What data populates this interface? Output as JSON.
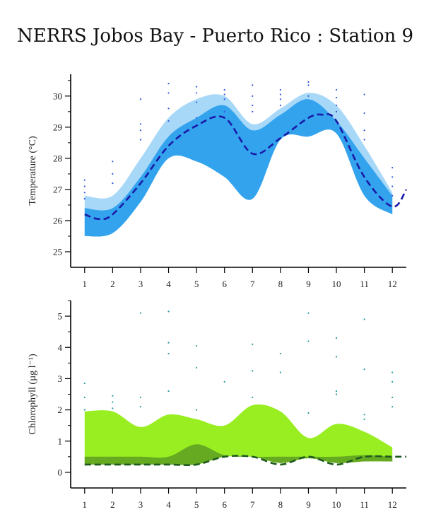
{
  "title": "NERRS Jobos Bay - Puerto Rico : Station 9",
  "colors": {
    "temp_outer": "#a8d8f8",
    "temp_inner": "#33a3ee",
    "temp_line": "#1a1aa8",
    "temp_dots": "#3355dd",
    "chl_outer": "#99ee22",
    "chl_inner": "#66aa22",
    "chl_line": "#1e5a1e",
    "chl_dots": "#229999",
    "axis": "#000000"
  },
  "chart_data": [
    {
      "type": "area",
      "ylabel": "Temperature (°C)",
      "xlabel": "",
      "x_ticks": [
        "1",
        "2",
        "3",
        "4",
        "5",
        "6",
        "7",
        "8",
        "9",
        "10",
        "11",
        "12"
      ],
      "y_ticks": [
        "25",
        "26",
        "27",
        "28",
        "29",
        "30"
      ],
      "xlim": [
        0.5,
        12.5
      ],
      "ylim": [
        24.5,
        30.7
      ],
      "outer_upper": [
        26.8,
        26.8,
        28.0,
        29.3,
        29.9,
        30.0,
        29.1,
        29.6,
        30.1,
        29.7,
        28.4,
        26.9
      ],
      "outer_lower": [
        25.5,
        25.6,
        26.6,
        28.0,
        27.9,
        27.4,
        26.7,
        28.6,
        28.7,
        28.8,
        26.8,
        26.2
      ],
      "inner_upper": [
        26.4,
        26.4,
        27.4,
        28.7,
        29.3,
        29.7,
        28.9,
        29.4,
        29.9,
        29.2,
        28.0,
        26.8
      ],
      "inner_lower": [
        25.5,
        25.6,
        26.6,
        28.0,
        27.9,
        27.4,
        26.7,
        28.6,
        28.7,
        28.8,
        26.8,
        26.2
      ],
      "median_x": [
        1,
        1.5,
        2,
        3,
        4,
        5,
        6,
        7,
        8,
        9,
        9.5,
        10,
        11,
        12,
        12.5
      ],
      "median": [
        26.2,
        26.05,
        26.2,
        27.2,
        28.4,
        29.05,
        29.3,
        28.15,
        28.65,
        29.3,
        29.4,
        29.2,
        27.4,
        26.45,
        27.0
      ],
      "points": [
        [
          1,
          27.3
        ],
        [
          1,
          27.1
        ],
        [
          1,
          26.9
        ],
        [
          1,
          26.7
        ],
        [
          2,
          27.9
        ],
        [
          2,
          27.5
        ],
        [
          2,
          27.2
        ],
        [
          3,
          29.9
        ],
        [
          3,
          29.1
        ],
        [
          3,
          28.9
        ],
        [
          3,
          28.6
        ],
        [
          4,
          30.4
        ],
        [
          4,
          30.1
        ],
        [
          4,
          29.6
        ],
        [
          4,
          29.2
        ],
        [
          5,
          30.3
        ],
        [
          5,
          30.1
        ],
        [
          5,
          29.8
        ],
        [
          5,
          29.3
        ],
        [
          6,
          30.2
        ],
        [
          6,
          30.05
        ],
        [
          6,
          29.9
        ],
        [
          6,
          29.5
        ],
        [
          7,
          30.35
        ],
        [
          7,
          30.0
        ],
        [
          7,
          29.7
        ],
        [
          7,
          29.5
        ],
        [
          8,
          30.2
        ],
        [
          8,
          30.05
        ],
        [
          8,
          29.9
        ],
        [
          8,
          29.7
        ],
        [
          9,
          30.45
        ],
        [
          9,
          30.35
        ],
        [
          9,
          30.0
        ],
        [
          10,
          30.2
        ],
        [
          10,
          29.95
        ],
        [
          10,
          29.7
        ],
        [
          10,
          29.5
        ],
        [
          11,
          30.05
        ],
        [
          11,
          29.45
        ],
        [
          11,
          28.9
        ],
        [
          11,
          28.6
        ],
        [
          12,
          27.7
        ],
        [
          12,
          27.4
        ],
        [
          12,
          27.1
        ],
        [
          12,
          26.8
        ]
      ]
    },
    {
      "type": "area",
      "ylabel": "Chlorophyll (µg l⁻¹)",
      "xlabel": "",
      "x_ticks": [
        "1",
        "2",
        "3",
        "4",
        "5",
        "6",
        "7",
        "8",
        "9",
        "10",
        "11",
        "12"
      ],
      "y_ticks": [
        "0",
        "1",
        "2",
        "3",
        "4",
        "5"
      ],
      "xlim": [
        0.5,
        12.5
      ],
      "ylim": [
        -0.5,
        5.5
      ],
      "outer_upper": [
        1.95,
        1.95,
        1.45,
        1.85,
        1.7,
        1.5,
        2.15,
        1.95,
        1.1,
        1.55,
        1.3,
        0.8
      ],
      "outer_lower": [
        0.3,
        0.3,
        0.3,
        0.3,
        0.35,
        0.5,
        0.5,
        0.3,
        0.45,
        0.3,
        0.35,
        0.35
      ],
      "inner_upper": [
        0.5,
        0.5,
        0.5,
        0.5,
        0.9,
        0.55,
        0.5,
        0.5,
        0.5,
        0.5,
        0.55,
        0.5
      ],
      "inner_lower": [
        0.25,
        0.25,
        0.25,
        0.25,
        0.25,
        0.5,
        0.5,
        0.3,
        0.45,
        0.3,
        0.35,
        0.35
      ],
      "median_x": [
        1,
        2,
        3,
        4,
        5,
        6,
        7,
        8,
        9,
        10,
        11,
        12,
        12.5
      ],
      "median": [
        0.25,
        0.25,
        0.25,
        0.25,
        0.25,
        0.5,
        0.5,
        0.25,
        0.5,
        0.25,
        0.5,
        0.5,
        0.5
      ],
      "points": [
        [
          1,
          2.85
        ],
        [
          1,
          2.4
        ],
        [
          1,
          2.0
        ],
        [
          2,
          2.45
        ],
        [
          2,
          2.25
        ],
        [
          2,
          2.05
        ],
        [
          3,
          5.1
        ],
        [
          3,
          2.4
        ],
        [
          3,
          2.1
        ],
        [
          4,
          5.15
        ],
        [
          4,
          4.15
        ],
        [
          4,
          3.8
        ],
        [
          4,
          2.6
        ],
        [
          5,
          4.05
        ],
        [
          5,
          3.35
        ],
        [
          5,
          2.0
        ],
        [
          6,
          2.9
        ],
        [
          7,
          4.1
        ],
        [
          7,
          3.25
        ],
        [
          7,
          2.4
        ],
        [
          8,
          3.8
        ],
        [
          8,
          3.2
        ],
        [
          9,
          5.1
        ],
        [
          9,
          4.2
        ],
        [
          9,
          1.9
        ],
        [
          10,
          4.3
        ],
        [
          10,
          3.7
        ],
        [
          10,
          2.6
        ],
        [
          10,
          2.5
        ],
        [
          11,
          4.9
        ],
        [
          11,
          3.3
        ],
        [
          11,
          1.85
        ],
        [
          11,
          1.7
        ],
        [
          12,
          3.2
        ],
        [
          12,
          2.9
        ],
        [
          12,
          2.4
        ],
        [
          12,
          2.1
        ]
      ]
    }
  ]
}
